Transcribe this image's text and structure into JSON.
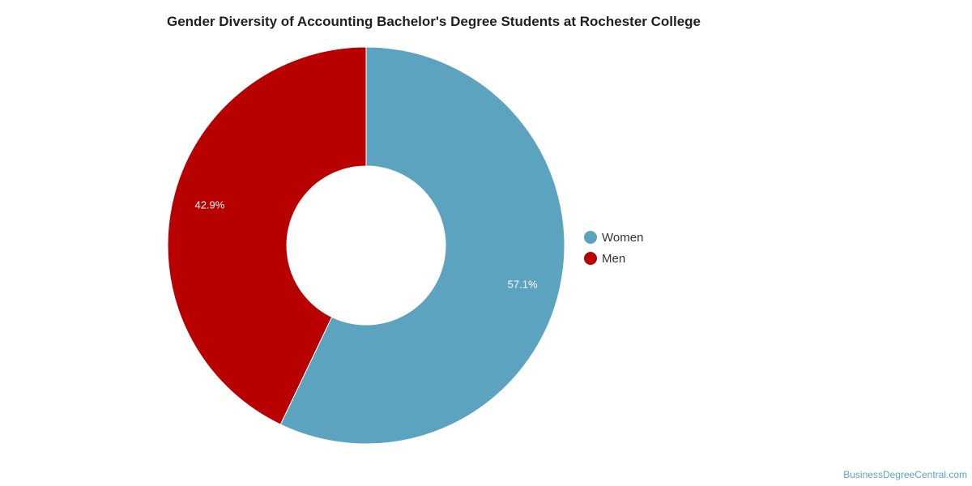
{
  "chart_data": {
    "type": "pie",
    "title": "Gender Diversity of Accounting Bachelor's Degree Students at Rochester College",
    "donut": true,
    "categories": [
      "Women",
      "Men"
    ],
    "values": [
      57.1,
      42.9
    ],
    "data_labels": [
      "57.1%",
      "42.9%"
    ],
    "colors": [
      "#5ca3bf",
      "#b80000"
    ],
    "legend_position": "right",
    "start_direction": "top",
    "direction": "clockwise"
  },
  "legend": {
    "items": [
      {
        "label": "Women",
        "color": "#5ca3bf"
      },
      {
        "label": "Men",
        "color": "#b80000"
      }
    ]
  },
  "watermark": "BusinessDegreeCentral.com"
}
